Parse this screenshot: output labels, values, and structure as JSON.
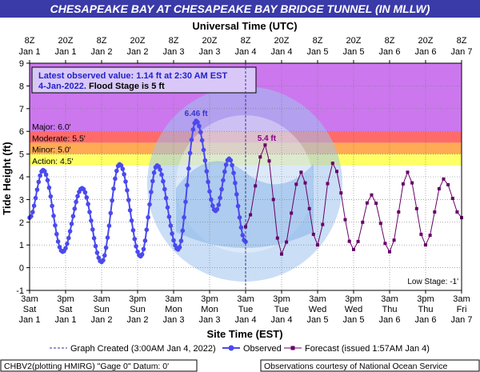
{
  "header": {
    "title": "CHESAPEAKE BAY AT CHESAPEAKE BAY BRIDGE TUNNEL (IN MLLW)",
    "title_bg": "#3a3aa8",
    "title_color": "#ffffff"
  },
  "footer": {
    "left": "CHBV2(plotting HMIRG) \"Gage 0\" Datum:  0'",
    "right": "Observations courtesy of National Ocean Service"
  },
  "info_box": {
    "line1": "Latest observed value: 1.14 ft at 2:30 AM EST",
    "line2a": "4-Jan-2022.",
    "line2b": " Flood Stage is 5 ft"
  },
  "chart_data": {
    "type": "line",
    "title": "CHESAPEAKE BAY AT CHESAPEAKE BAY BRIDGE TUNNEL (IN MLLW)",
    "xlabel": "Site Time (EST)",
    "x2label": "Universal Time (UTC)",
    "ylabel": "Tide Height (ft)",
    "ylim": [
      -1,
      9
    ],
    "yticks": [
      -1,
      0,
      1,
      2,
      3,
      4,
      5,
      6,
      7,
      8,
      9
    ],
    "xlim_hours": [
      0,
      144
    ],
    "x_ticks_est": [
      {
        "line1": "3am",
        "line2": "Sat",
        "line3": "Jan 1"
      },
      {
        "line1": "3pm",
        "line2": "Sat",
        "line3": "Jan 1"
      },
      {
        "line1": "3am",
        "line2": "Sun",
        "line3": "Jan 2"
      },
      {
        "line1": "3pm",
        "line2": "Sun",
        "line3": "Jan 2"
      },
      {
        "line1": "3am",
        "line2": "Mon",
        "line3": "Jan 3"
      },
      {
        "line1": "3pm",
        "line2": "Mon",
        "line3": "Jan 3"
      },
      {
        "line1": "3am",
        "line2": "Tue",
        "line3": "Jan 4"
      },
      {
        "line1": "3pm",
        "line2": "Tue",
        "line3": "Jan 4"
      },
      {
        "line1": "3am",
        "line2": "Wed",
        "line3": "Jan 5"
      },
      {
        "line1": "3pm",
        "line2": "Wed",
        "line3": "Jan 5"
      },
      {
        "line1": "3am",
        "line2": "Thu",
        "line3": "Jan 6"
      },
      {
        "line1": "3pm",
        "line2": "Thu",
        "line3": "Jan 6"
      },
      {
        "line1": "3am",
        "line2": "Fri",
        "line3": "Jan 7"
      }
    ],
    "x_ticks_utc": [
      {
        "line1": "8Z",
        "line2": "Jan 1"
      },
      {
        "line1": "20Z",
        "line2": "Jan 1"
      },
      {
        "line1": "8Z",
        "line2": "Jan 2"
      },
      {
        "line1": "20Z",
        "line2": "Jan 2"
      },
      {
        "line1": "8Z",
        "line2": "Jan 3"
      },
      {
        "line1": "20Z",
        "line2": "Jan 3"
      },
      {
        "line1": "8Z",
        "line2": "Jan 4"
      },
      {
        "line1": "20Z",
        "line2": "Jan 4"
      },
      {
        "line1": "8Z",
        "line2": "Jan 5"
      },
      {
        "line1": "20Z",
        "line2": "Jan 5"
      },
      {
        "line1": "8Z",
        "line2": "Jan 6"
      },
      {
        "line1": "20Z",
        "line2": "Jan 6"
      },
      {
        "line1": "8Z",
        "line2": "Jan 7"
      }
    ],
    "flood_categories": [
      {
        "label": "Major: 6.0'",
        "from": 6.0,
        "to": 9.0,
        "color": "#cc77ee"
      },
      {
        "label": "Moderate: 5.5'",
        "from": 5.5,
        "to": 6.0,
        "color": "#ff6a6a"
      },
      {
        "label": "Minor: 5.0'",
        "from": 5.0,
        "to": 5.5,
        "color": "#ffaa55"
      },
      {
        "label": "Action: 4.5'",
        "from": 4.5,
        "to": 5.0,
        "color": "#ffff66"
      }
    ],
    "low_stage_label": "Low Stage: -1'",
    "graph_created_hours": 72,
    "observed": {
      "name": "Observed",
      "color": "#4a4aee",
      "extrema": [
        [
          0,
          2.2
        ],
        [
          4.5,
          4.3
        ],
        [
          11,
          0.7
        ],
        [
          17.5,
          3.5
        ],
        [
          24,
          0.25
        ],
        [
          30,
          4.55
        ],
        [
          37,
          0.5
        ],
        [
          42.5,
          4.5
        ],
        [
          49.5,
          0.8
        ],
        [
          55.5,
          6.46
        ],
        [
          62,
          2.5
        ],
        [
          66.5,
          4.8
        ],
        [
          72,
          1.14
        ]
      ],
      "peak_label": "6.46 ft"
    },
    "forecast": {
      "name": "Forecast (issued 1:57AM Jan 4)",
      "color": "#660066",
      "extrema": [
        [
          72,
          1.8
        ],
        [
          78.5,
          5.4
        ],
        [
          84,
          0.6
        ],
        [
          90.5,
          4.2
        ],
        [
          96,
          1.0
        ],
        [
          101,
          4.6
        ],
        [
          108,
          0.8
        ],
        [
          114,
          3.2
        ],
        [
          120,
          0.7
        ],
        [
          126,
          4.2
        ],
        [
          132,
          1.0
        ],
        [
          138,
          3.9
        ],
        [
          144,
          2.2
        ]
      ],
      "peak_label": "5.4 ft"
    },
    "legend": {
      "graph_created": "Graph Created (3:00AM Jan 4, 2022)",
      "observed": "Observed",
      "forecast": "Forecast (issued 1:57AM Jan 4)"
    },
    "grid": true
  }
}
